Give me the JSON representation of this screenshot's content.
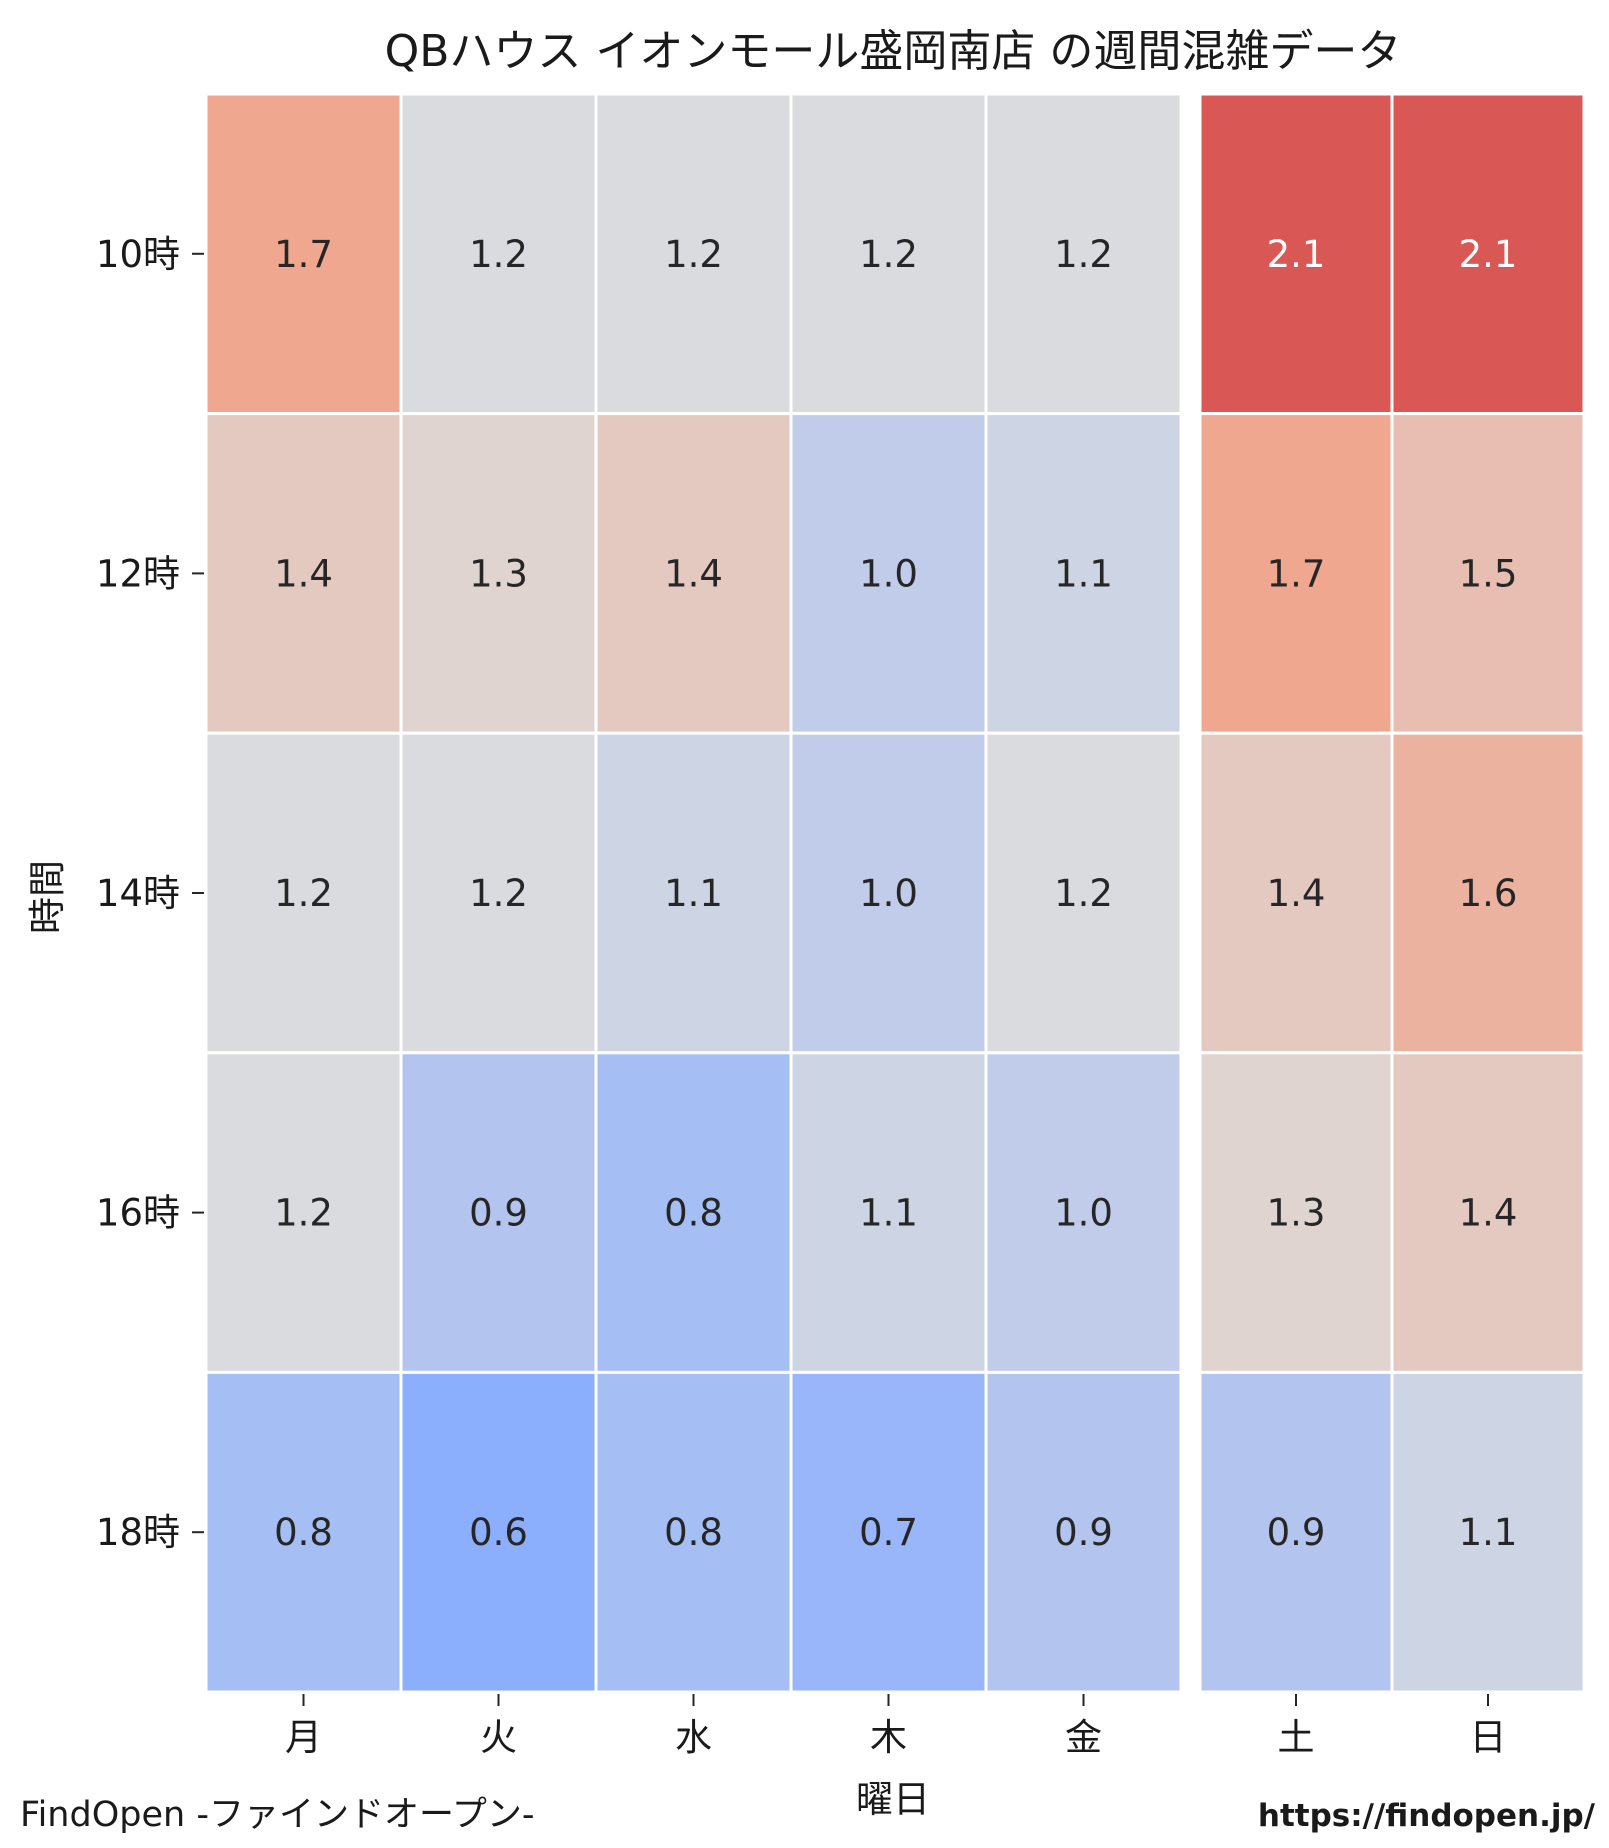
{
  "chart_data": {
    "type": "heatmap",
    "title": "QBハウス イオンモール盛岡南店 の週間混雑データ",
    "xlabel": "曜日",
    "ylabel": "時間",
    "x_categories": [
      "月",
      "火",
      "水",
      "木",
      "金",
      "土",
      "日"
    ],
    "y_categories": [
      "10時",
      "12時",
      "14時",
      "16時",
      "18時"
    ],
    "values": [
      [
        1.7,
        1.2,
        1.2,
        1.2,
        1.2,
        2.1,
        2.1
      ],
      [
        1.4,
        1.3,
        1.4,
        1.0,
        1.1,
        1.7,
        1.5
      ],
      [
        1.2,
        1.2,
        1.1,
        1.0,
        1.2,
        1.4,
        1.6
      ],
      [
        1.2,
        0.9,
        0.8,
        1.1,
        1.0,
        1.3,
        1.4
      ],
      [
        0.8,
        0.6,
        0.8,
        0.7,
        0.9,
        0.9,
        1.1
      ]
    ],
    "value_format": "0.0",
    "colormap": "coolwarm",
    "color_range": [
      0.6,
      2.1
    ],
    "grid": false,
    "legend": "none"
  },
  "footer": {
    "left": "FindOpen -ファインドオープン-",
    "right": "https://findopen.jp/"
  }
}
